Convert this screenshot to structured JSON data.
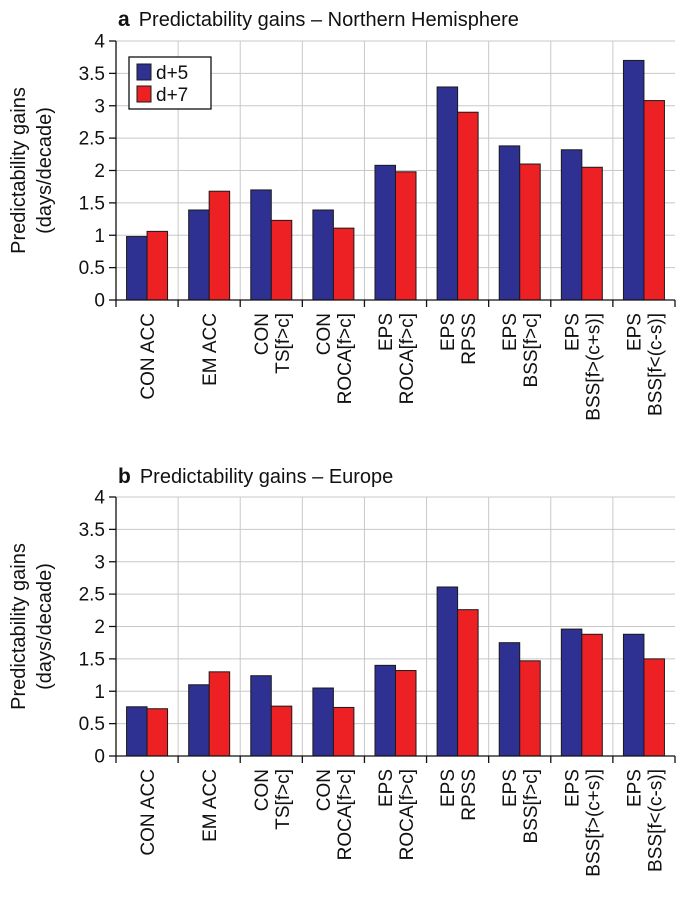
{
  "colors": {
    "d5": "#2e3192",
    "d7": "#ed2024"
  },
  "chart_data": [
    {
      "type": "bar",
      "panel_letter": "a",
      "title": "Predictability gains – Northern Hemisphere",
      "ylabel_lines": [
        "Predictability gains",
        "(days/decade)"
      ],
      "ylim": [
        0,
        4
      ],
      "yticks": [
        "0",
        "0.5",
        "1",
        "1.5",
        "2",
        "2.5",
        "3",
        "3.5",
        "4"
      ],
      "grid": true,
      "legend": "top-left",
      "categories": [
        [
          "CON ACC"
        ],
        [
          "EM ACC"
        ],
        [
          "CON",
          "TS[f>c]"
        ],
        [
          "CON",
          "ROCA[f>c]"
        ],
        [
          "EPS",
          "ROCA[f>c]"
        ],
        [
          "EPS",
          "RPSS"
        ],
        [
          "EPS",
          "BSS[f>c]"
        ],
        [
          "EPS",
          "BSS[f>(c+s)]"
        ],
        [
          "EPS",
          "BSS[f<(c-s)]"
        ]
      ],
      "series": [
        {
          "name": "d+5",
          "values": [
            0.98,
            1.39,
            1.7,
            1.39,
            2.08,
            3.29,
            2.38,
            2.32,
            3.7
          ]
        },
        {
          "name": "d+7",
          "values": [
            1.06,
            1.68,
            1.23,
            1.11,
            1.98,
            2.9,
            2.1,
            2.05,
            3.08
          ]
        }
      ]
    },
    {
      "type": "bar",
      "panel_letter": "b",
      "title": "Predictability gains – Europe",
      "ylabel_lines": [
        "Predictability gains",
        "(days/decade)"
      ],
      "ylim": [
        0,
        4
      ],
      "yticks": [
        "0",
        "0.5",
        "1",
        "1.5",
        "2",
        "2.5",
        "3",
        "3.5",
        "4"
      ],
      "grid": true,
      "legend": "none",
      "categories": [
        [
          "CON ACC"
        ],
        [
          "EM ACC"
        ],
        [
          "CON",
          "TS[f>c]"
        ],
        [
          "CON",
          "ROCA[f>c]"
        ],
        [
          "EPS",
          "ROCA[f>c]"
        ],
        [
          "EPS",
          "RPSS"
        ],
        [
          "EPS",
          "BSS[f>c]"
        ],
        [
          "EPS",
          "BSS[f>(c+s)]"
        ],
        [
          "EPS",
          "BSS[f<(c-s)]"
        ]
      ],
      "series": [
        {
          "name": "d+5",
          "values": [
            0.76,
            1.1,
            1.24,
            1.05,
            1.4,
            2.61,
            1.75,
            1.96,
            1.88
          ]
        },
        {
          "name": "d+7",
          "values": [
            0.73,
            1.3,
            0.77,
            0.75,
            1.32,
            2.26,
            1.47,
            1.88,
            1.5
          ]
        }
      ]
    }
  ]
}
